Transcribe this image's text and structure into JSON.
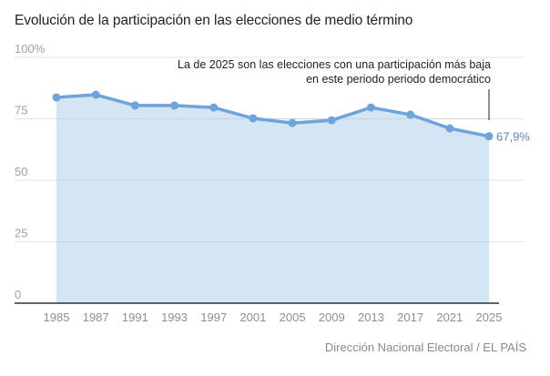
{
  "chart_data": {
    "type": "area",
    "title": "Evolución de la participación en las elecciones de medio término",
    "xlabel": "",
    "ylabel": "",
    "categories": [
      "1985",
      "1987",
      "1991",
      "1993",
      "1997",
      "2001",
      "2005",
      "2009",
      "2013",
      "2017",
      "2021",
      "2025"
    ],
    "series": [
      {
        "name": "Participación",
        "values": [
          83.7,
          84.8,
          80.4,
          80.4,
          79.6,
          75.2,
          73.3,
          74.4,
          79.6,
          76.7,
          71.1,
          67.9
        ]
      }
    ],
    "ylim": [
      0,
      100
    ],
    "yticks": [
      0,
      25,
      50,
      75,
      100
    ],
    "ytick_labels": [
      "0",
      "25",
      "50",
      "75",
      "100%"
    ],
    "grid": true,
    "end_label": "67,9%",
    "annotation": {
      "line1": "La de 2025 son las elecciones con una participación más baja",
      "line2": "en este periodo periodo democrático",
      "target": "2025"
    },
    "colors": {
      "line": "#6fa3dc",
      "fill": "#d4e5f4",
      "grid": "#e3e3e3",
      "axis": "#333333"
    },
    "source": "Dirección Nacional Electoral / EL PAÍS"
  }
}
